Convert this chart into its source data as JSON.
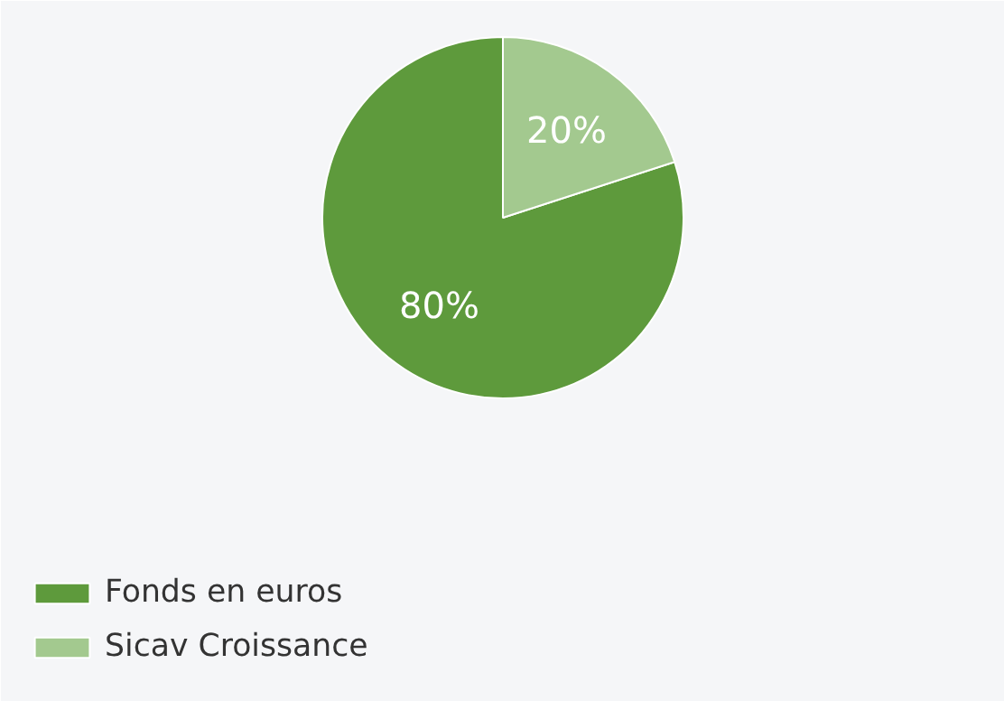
{
  "chart_data": {
    "type": "pie",
    "categories": [
      "Fonds en euros",
      "Sicav Croissance"
    ],
    "values": [
      80,
      20
    ],
    "colors": [
      "#5e9a3c",
      "#a3c98f"
    ],
    "value_labels": [
      "80%",
      "20%"
    ],
    "legend": "bottom left"
  }
}
